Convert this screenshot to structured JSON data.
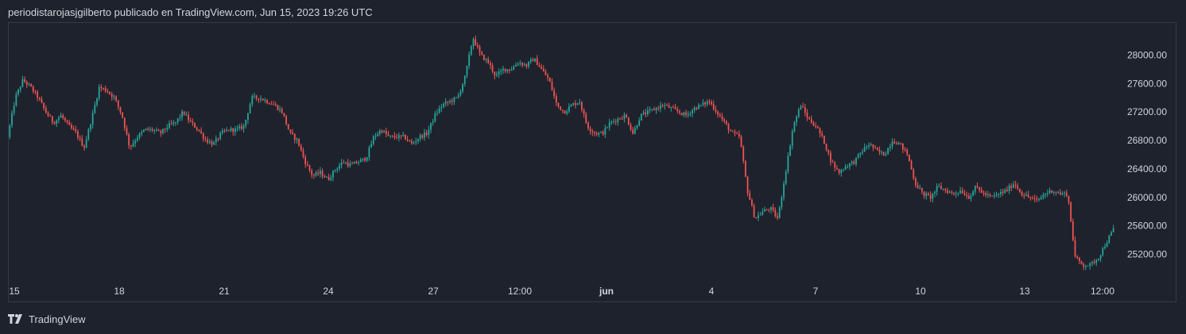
{
  "header": {
    "attribution": "periodistarojasjgilberto publicado en TradingView.com, Jun 15, 2023 19:26 UTC"
  },
  "footer": {
    "brand": "TradingView"
  },
  "colors": {
    "up": "#26a69a",
    "down": "#ef5350",
    "background": "#1e222d",
    "border": "#363a45",
    "text": "#d1d4dc"
  },
  "chart_data": {
    "type": "candlestick",
    "title": "",
    "xlabel": "",
    "ylabel": "",
    "ylim": [
      24850,
      28450
    ],
    "y_ticks": [
      {
        "value": 28000,
        "label": "28000.00"
      },
      {
        "value": 27600,
        "label": "27600.00"
      },
      {
        "value": 27200,
        "label": "27200.00"
      },
      {
        "value": 26800,
        "label": "26800.00"
      },
      {
        "value": 26400,
        "label": "26400.00"
      },
      {
        "value": 26000,
        "label": "26000.00"
      },
      {
        "value": 25600,
        "label": "25600.00"
      },
      {
        "value": 25200,
        "label": "25200.00"
      }
    ],
    "x_ticks": [
      {
        "label": "15",
        "bold": false
      },
      {
        "label": "18",
        "bold": false
      },
      {
        "label": "21",
        "bold": false
      },
      {
        "label": "24",
        "bold": false
      },
      {
        "label": "27",
        "bold": false
      },
      {
        "label": "12:00",
        "bold": false
      },
      {
        "label": "jun",
        "bold": true
      },
      {
        "label": "4",
        "bold": false
      },
      {
        "label": "7",
        "bold": false
      },
      {
        "label": "10",
        "bold": false
      },
      {
        "label": "13",
        "bold": false
      },
      {
        "label": "12:00",
        "bold": false
      }
    ],
    "price_path": [
      26850,
      27400,
      27650,
      27550,
      27400,
      27200,
      27050,
      27150,
      27000,
      26900,
      26700,
      27100,
      27550,
      27500,
      27400,
      27150,
      26700,
      26850,
      26950,
      26950,
      26900,
      27000,
      27050,
      27200,
      27050,
      26950,
      26800,
      26750,
      26900,
      26950,
      26950,
      27000,
      27400,
      27400,
      27350,
      27300,
      27200,
      26900,
      26800,
      26500,
      26300,
      26350,
      26250,
      26400,
      26500,
      26450,
      26500,
      26550,
      26850,
      26950,
      26850,
      26850,
      26850,
      26750,
      26850,
      26900,
      27150,
      27300,
      27350,
      27400,
      27700,
      28250,
      28000,
      27900,
      27700,
      27800,
      27800,
      27900,
      27850,
      27950,
      27800,
      27650,
      27300,
      27200,
      27300,
      27350,
      27000,
      26900,
      26900,
      27050,
      27100,
      27150,
      26900,
      27150,
      27200,
      27250,
      27300,
      27250,
      27200,
      27150,
      27250,
      27300,
      27350,
      27200,
      27050,
      26900,
      26850,
      26100,
      25700,
      25800,
      25850,
      25700,
      26350,
      27000,
      27300,
      27100,
      27000,
      26800,
      26500,
      26350,
      26450,
      26500,
      26650,
      26750,
      26650,
      26600,
      26800,
      26750,
      26600,
      26200,
      26050,
      26000,
      26150,
      26100,
      26050,
      26100,
      26000,
      26150,
      26050,
      26000,
      26050,
      26100,
      26200,
      26050,
      26000,
      25950,
      26050,
      26100,
      26050,
      26050,
      25150,
      25050,
      25050,
      25150,
      25350,
      25550
    ]
  }
}
